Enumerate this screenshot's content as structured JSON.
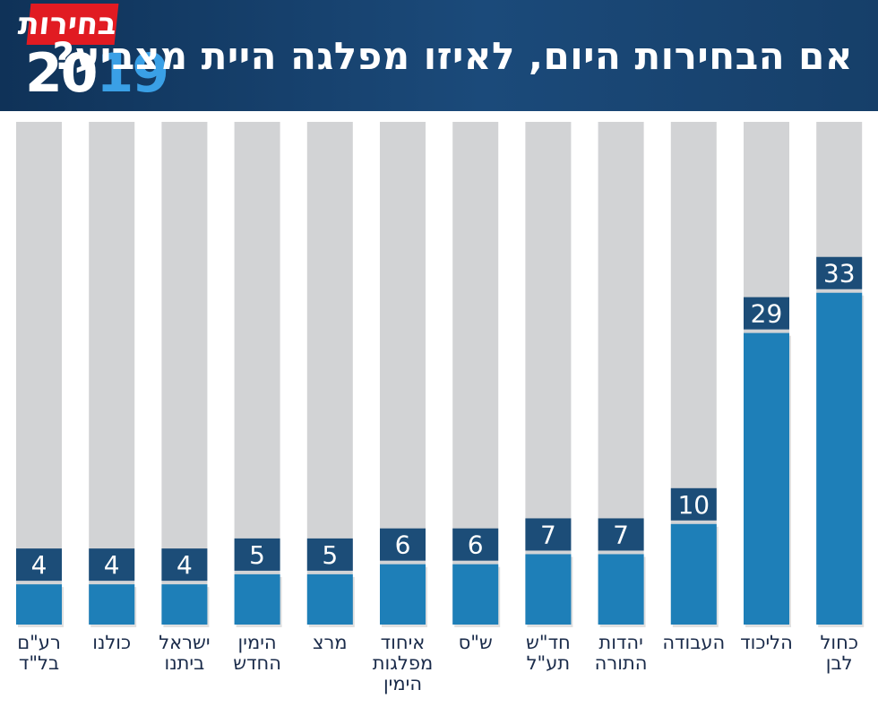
{
  "header": {
    "title": "אם הבחירות היום, לאיזו מפלגה היית מצביע?",
    "logo_word": "בחירות",
    "logo_year_a": "20",
    "logo_year_b": "19"
  },
  "colors": {
    "bar": "#1e7fb8",
    "track": "#d2d3d5",
    "label_box": "#1c4d78",
    "label_text": "#ffffff",
    "category_text": "#1a2b4a"
  },
  "chart_data": {
    "type": "bar",
    "title": "אם הבחירות היום, לאיזו מפלגה היית מצביע?",
    "xlabel": "",
    "ylabel": "",
    "ylim": [
      0,
      50
    ],
    "categories": [
      [
        "רע\"ם",
        "בל\"ד"
      ],
      [
        "כולנו"
      ],
      [
        "ישראל",
        "ביתנו"
      ],
      [
        "הימין",
        "החדש"
      ],
      [
        "מרצ"
      ],
      [
        "איחוד",
        "מפלגות",
        "הימין"
      ],
      [
        "ש\"ס"
      ],
      [
        "חד\"ש",
        "תע\"ל"
      ],
      [
        "יהדות",
        "התורה"
      ],
      [
        "העבודה"
      ],
      [
        "הליכוד"
      ],
      [
        "כחול",
        "לבן"
      ]
    ],
    "values": [
      4,
      4,
      4,
      5,
      5,
      6,
      6,
      7,
      7,
      10,
      29,
      33
    ]
  }
}
